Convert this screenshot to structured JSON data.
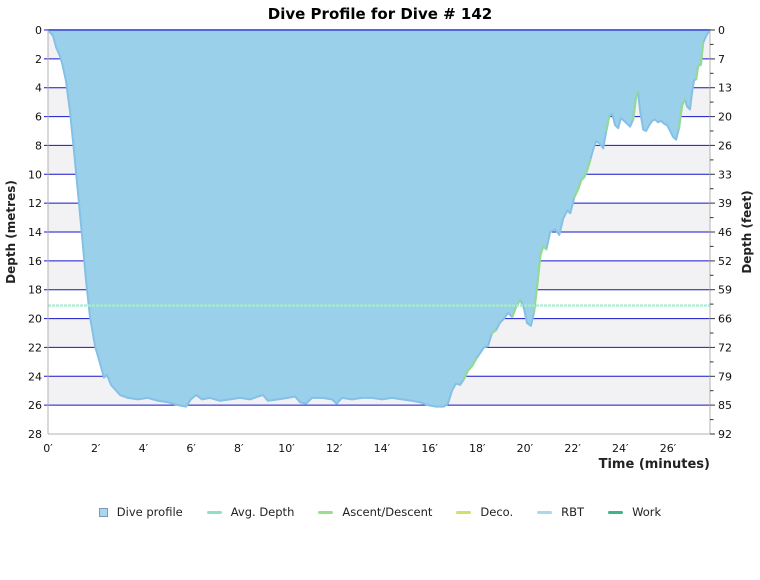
{
  "chart_data": {
    "type": "area",
    "title": "Dive Profile for Dive # 142",
    "xlabel": "Time (minutes)",
    "ylabel_left": "Depth (metres)",
    "ylabel_right": "Depth (feet)",
    "xlim": [
      0,
      27.76
    ],
    "ylim": [
      0,
      28
    ],
    "grid": "horizontal-blue-lines with alternating gray/white depth bands",
    "x_tick_minutes": [
      0,
      2,
      4,
      6,
      8,
      10,
      12,
      14,
      16,
      18,
      20,
      22,
      24,
      26
    ],
    "x_tick_labels": [
      "0′",
      "2′",
      "4′",
      "6′",
      "8′",
      "10′",
      "12′",
      "14′",
      "16′",
      "18′",
      "20′",
      "22′",
      "24′",
      "26′"
    ],
    "y_ticks_metres": [
      0,
      2,
      4,
      6,
      8,
      10,
      12,
      14,
      16,
      18,
      20,
      22,
      24,
      26,
      28
    ],
    "y_tick_labels_feet": [
      "0",
      "7",
      "13",
      "20",
      "26",
      "33",
      "39",
      "46",
      "52",
      "59",
      "66",
      "72",
      "79",
      "85",
      "92"
    ],
    "avg_depth_m": 19.1,
    "max_depth_m": 26.1,
    "profile_time_depth": [
      [
        0,
        0
      ],
      [
        0.21,
        0.4
      ],
      [
        0.34,
        1.2
      ],
      [
        0.5,
        1.8
      ],
      [
        0.59,
        2.3
      ],
      [
        0.75,
        3.5
      ],
      [
        0.92,
        5.6
      ],
      [
        1.09,
        8.4
      ],
      [
        1.26,
        11.3
      ],
      [
        1.43,
        14.3
      ],
      [
        1.59,
        17.3
      ],
      [
        1.76,
        19.9
      ],
      [
        1.97,
        21.9
      ],
      [
        2.18,
        23.1
      ],
      [
        2.35,
        24.1
      ],
      [
        2.47,
        23.9
      ],
      [
        2.64,
        24.6
      ],
      [
        2.81,
        24.9
      ],
      [
        3.02,
        25.3
      ],
      [
        3.35,
        25.5
      ],
      [
        3.77,
        25.6
      ],
      [
        4.19,
        25.5
      ],
      [
        4.61,
        25.7
      ],
      [
        5.03,
        25.8
      ],
      [
        5.45,
        26
      ],
      [
        5.79,
        26.1
      ],
      [
        5.99,
        25.6
      ],
      [
        6.21,
        25.3
      ],
      [
        6.46,
        25.6
      ],
      [
        6.79,
        25.5
      ],
      [
        7.21,
        25.7
      ],
      [
        7.63,
        25.6
      ],
      [
        8.05,
        25.5
      ],
      [
        8.47,
        25.6
      ],
      [
        8.81,
        25.4
      ],
      [
        9.01,
        25.3
      ],
      [
        9.22,
        25.7
      ],
      [
        9.64,
        25.6
      ],
      [
        10.06,
        25.5
      ],
      [
        10.36,
        25.4
      ],
      [
        10.57,
        25.8
      ],
      [
        10.82,
        25.9
      ],
      [
        11.07,
        25.5
      ],
      [
        11.49,
        25.5
      ],
      [
        11.91,
        25.6
      ],
      [
        12.1,
        25.9
      ],
      [
        12.33,
        25.5
      ],
      [
        12.75,
        25.6
      ],
      [
        13.17,
        25.5
      ],
      [
        13.59,
        25.5
      ],
      [
        14.01,
        25.6
      ],
      [
        14.43,
        25.5
      ],
      [
        14.84,
        25.6
      ],
      [
        15.26,
        25.7
      ],
      [
        15.6,
        25.8
      ],
      [
        15.93,
        26
      ],
      [
        16.27,
        26.1
      ],
      [
        16.6,
        26.1
      ],
      [
        16.77,
        25.9
      ],
      [
        16.94,
        25
      ],
      [
        17.11,
        24.5
      ],
      [
        17.28,
        24.6
      ],
      [
        17.44,
        24.2
      ],
      [
        17.61,
        23.6
      ],
      [
        17.78,
        23.3
      ],
      [
        17.95,
        22.8
      ],
      [
        18.12,
        22.4
      ],
      [
        18.28,
        22
      ],
      [
        18.45,
        21.9
      ],
      [
        18.62,
        21
      ],
      [
        18.79,
        20.8
      ],
      [
        18.95,
        20.3
      ],
      [
        19.12,
        20
      ],
      [
        19.29,
        19.6
      ],
      [
        19.46,
        19.9
      ],
      [
        19.63,
        19.2
      ],
      [
        19.8,
        18.7
      ],
      [
        19.96,
        19.3
      ],
      [
        20.08,
        20.3
      ],
      [
        20.25,
        20.5
      ],
      [
        20.38,
        19.6
      ],
      [
        20.5,
        17.9
      ],
      [
        20.65,
        15.6
      ],
      [
        20.77,
        15
      ],
      [
        20.9,
        15.2
      ],
      [
        21.06,
        14
      ],
      [
        21.27,
        13.8
      ],
      [
        21.44,
        14.2
      ],
      [
        21.6,
        13.1
      ],
      [
        21.77,
        12.5
      ],
      [
        21.9,
        12.7
      ],
      [
        22.07,
        11.6
      ],
      [
        22.24,
        11
      ],
      [
        22.36,
        10.4
      ],
      [
        22.49,
        10.2
      ],
      [
        22.61,
        9.7
      ],
      [
        22.74,
        9
      ],
      [
        22.86,
        8.3
      ],
      [
        22.99,
        7.7
      ],
      [
        23.15,
        7.9
      ],
      [
        23.28,
        8.2
      ],
      [
        23.41,
        7
      ],
      [
        23.53,
        6
      ],
      [
        23.66,
        5.8
      ],
      [
        23.78,
        6.6
      ],
      [
        23.91,
        6.8
      ],
      [
        24.03,
        6.1
      ],
      [
        24.16,
        6.3
      ],
      [
        24.29,
        6.5
      ],
      [
        24.41,
        6.7
      ],
      [
        24.54,
        6.2
      ],
      [
        24.66,
        4.6
      ],
      [
        24.74,
        4.3
      ],
      [
        24.83,
        5.6
      ],
      [
        24.96,
        6.9
      ],
      [
        25.08,
        7
      ],
      [
        25.21,
        6.6
      ],
      [
        25.33,
        6.3
      ],
      [
        25.46,
        6.2
      ],
      [
        25.58,
        6.4
      ],
      [
        25.71,
        6.3
      ],
      [
        25.84,
        6.5
      ],
      [
        25.96,
        6.6
      ],
      [
        26.09,
        7
      ],
      [
        26.21,
        7.4
      ],
      [
        26.34,
        7.6
      ],
      [
        26.46,
        6.8
      ],
      [
        26.59,
        5.2
      ],
      [
        26.71,
        4.8
      ],
      [
        26.8,
        5.3
      ],
      [
        26.92,
        5.5
      ],
      [
        27.01,
        4.3
      ],
      [
        27.09,
        3.5
      ],
      [
        27.18,
        3.4
      ],
      [
        27.26,
        2.5
      ],
      [
        27.38,
        2.4
      ],
      [
        27.47,
        0.9
      ],
      [
        27.6,
        0.4
      ],
      [
        27.76,
        0
      ]
    ],
    "fast_ascent_segments": [
      [
        17.4,
        18.0
      ],
      [
        18.5,
        18.82
      ],
      [
        19.42,
        19.82
      ],
      [
        20.3,
        20.9
      ],
      [
        21.95,
        22.76
      ],
      [
        23.35,
        23.6
      ],
      [
        24.45,
        24.76
      ],
      [
        26.4,
        26.73
      ],
      [
        27.15,
        27.5
      ]
    ],
    "colors": {
      "gridline": "#1414cc",
      "band_gray": "#f2f2f4",
      "band_white": "#ffffff",
      "profile_fill": "#9ad0ea",
      "profile_stroke": "#85c0e6",
      "ascent_descent": "#94da94",
      "avg_depth": "#a9ebd1",
      "frame": "#b3b3b3",
      "tick": "#333333",
      "text": "#111111"
    }
  },
  "legend": [
    {
      "label": "Dive profile",
      "swatch": "square",
      "color": "#a8d7ee",
      "border": "#7a9ab8"
    },
    {
      "label": "Avg. Depth",
      "swatch": "line",
      "color": "#8fe2c1"
    },
    {
      "label": "Ascent/Descent",
      "swatch": "line",
      "color": "#9ade8e"
    },
    {
      "label": "Deco.",
      "swatch": "line",
      "color": "#d3de70"
    },
    {
      "label": "RBT",
      "swatch": "line",
      "color": "#a9d7ef"
    },
    {
      "label": "Work",
      "swatch": "line",
      "color": "#3eb586"
    }
  ]
}
